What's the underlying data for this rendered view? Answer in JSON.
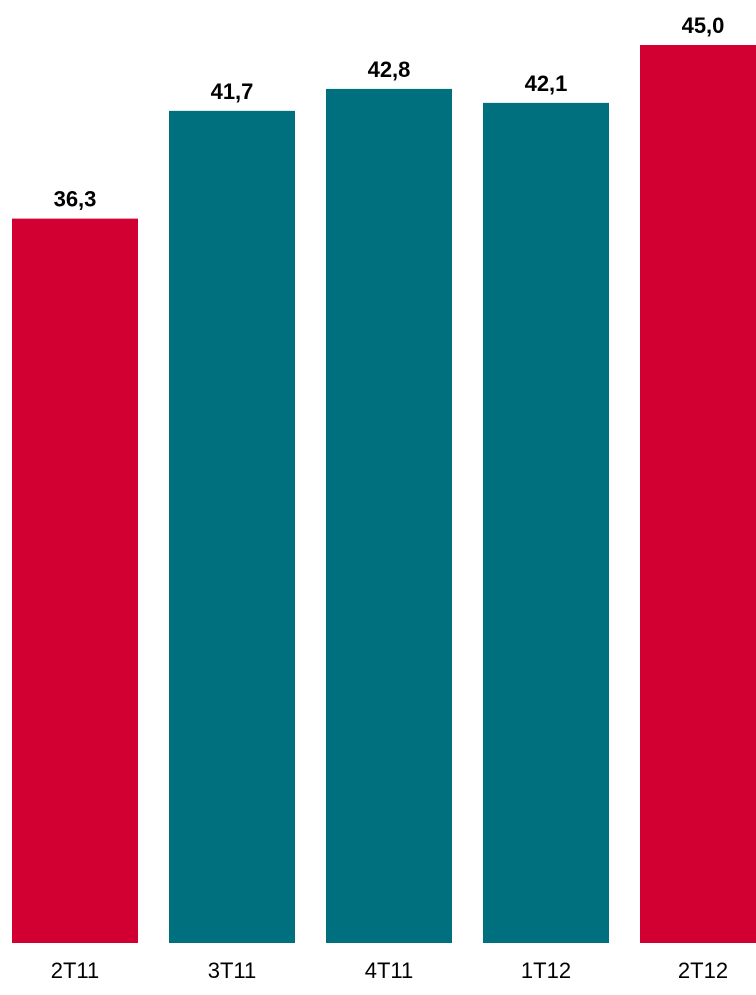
{
  "chart_data": {
    "type": "bar",
    "title": "",
    "xlabel": "",
    "ylabel": "",
    "categories": [
      "2T11",
      "3T11",
      "4T11",
      "1T12",
      "2T12"
    ],
    "values": [
      36.3,
      41.7,
      42.8,
      42.1,
      45.0
    ],
    "value_labels": [
      "36,3",
      "41,7",
      "42,8",
      "42,1",
      "45,0"
    ],
    "bar_colors": [
      "#D20032",
      "#00707F",
      "#00707F",
      "#00707F",
      "#D20032"
    ],
    "ylim": [
      0,
      45.0
    ],
    "grid": false,
    "legend": "none"
  }
}
